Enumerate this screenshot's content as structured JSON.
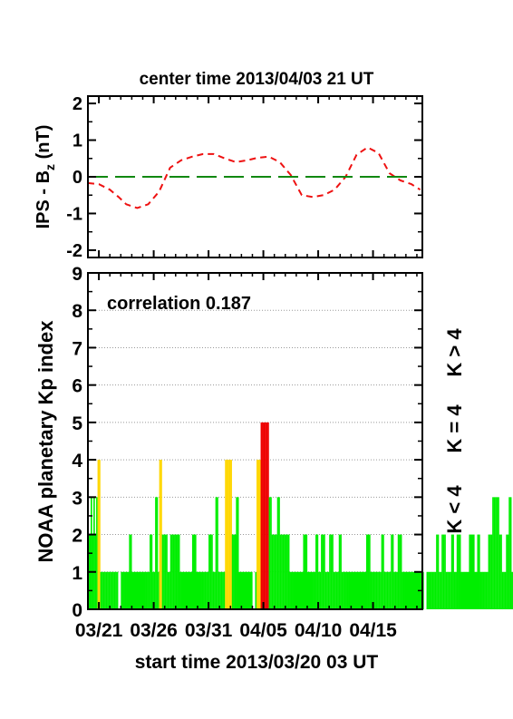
{
  "colors": {
    "bz_line": "#ee1111",
    "zero_line": "#118811",
    "kp_low": "#00ee00",
    "kp_mid": "#ffd700",
    "kp_high": "#ee0000",
    "grid": "#999999"
  },
  "x_ticks": [
    "03/21",
    "03/26",
    "03/31",
    "04/05",
    "04/10",
    "04/15"
  ],
  "chart_data": [
    {
      "type": "line",
      "title": "center time 2013/04/03 21 UT",
      "ylabel_main": "IPS - B",
      "ylabel_sub": "z",
      "ylabel_unit": " (nT)",
      "ylim": [
        -2.2,
        2.2
      ],
      "yticks": [
        "2",
        "1",
        "0",
        "-1",
        "-2"
      ],
      "xlim_days": [
        0,
        30.5
      ],
      "series": [
        {
          "style": "dashed-red",
          "x": [
            0,
            1,
            2,
            2.8,
            3.5,
            4.5,
            5.5,
            6.5,
            7.5,
            8.5,
            9.5,
            10.5,
            11.5,
            12.5,
            13.5,
            14.5,
            15.5,
            16.5,
            17.5,
            18.5,
            19.5,
            20.5,
            21.5,
            22.5,
            23.5,
            24.5,
            25.5,
            26.5,
            27.5,
            28.5,
            29.5,
            30.3
          ],
          "y": [
            -0.17,
            -0.2,
            -0.35,
            -0.55,
            -0.75,
            -0.85,
            -0.75,
            -0.4,
            0.25,
            0.45,
            0.55,
            0.62,
            0.62,
            0.5,
            0.4,
            0.45,
            0.52,
            0.55,
            0.4,
            0.05,
            -0.5,
            -0.55,
            -0.5,
            -0.35,
            0.0,
            0.6,
            0.8,
            0.65,
            0.1,
            -0.1,
            -0.2,
            -0.35
          ]
        },
        {
          "style": "long-dash-green",
          "x": [
            0,
            30.5
          ],
          "y": [
            0,
            0
          ]
        }
      ]
    },
    {
      "type": "bar",
      "annotation": "correlation 0.187",
      "ylabel": "NOAA planetary Kp index",
      "xlabel": "start time 2013/03/20 03 UT",
      "ylim": [
        0,
        9
      ],
      "yticks": [
        "9",
        "8",
        "7",
        "6",
        "5",
        "4",
        "3",
        "2",
        "1",
        "0"
      ],
      "grid": "dotted horizontal",
      "legend": [
        "K < 4",
        "K = 4",
        "K > 4"
      ],
      "xlim_days": [
        0,
        30.5
      ],
      "bin_days": 0.125,
      "values": [
        2,
        2,
        3,
        2,
        3,
        2,
        3,
        4,
        4,
        1,
        1,
        1,
        1,
        1,
        1,
        1,
        1,
        1,
        1,
        1,
        1,
        1,
        0,
        0,
        1,
        1,
        1,
        1,
        1,
        1,
        2,
        2,
        1,
        1,
        1,
        1,
        1,
        1,
        1,
        1,
        1,
        1,
        1,
        1,
        1,
        2,
        2,
        1,
        1,
        3,
        3,
        1,
        4,
        4,
        2,
        2,
        2,
        2,
        1,
        1,
        2,
        2,
        2,
        2,
        2,
        2,
        2,
        1,
        1,
        1,
        1,
        1,
        1,
        1,
        1,
        1,
        2,
        2,
        2,
        1,
        1,
        1,
        1,
        1,
        1,
        1,
        1,
        1,
        2,
        2,
        2,
        1,
        1,
        3,
        3,
        1,
        1,
        1,
        1,
        1,
        4,
        4,
        4,
        4,
        4,
        2,
        2,
        2,
        3,
        3,
        1,
        1,
        1,
        1,
        1,
        1,
        1,
        1,
        1,
        1,
        0,
        0,
        1,
        4,
        4,
        4,
        5,
        5,
        5,
        5,
        5,
        5,
        3,
        3,
        2,
        2,
        2,
        2,
        3,
        3,
        2,
        2,
        2,
        2,
        2,
        2,
        2,
        1,
        1,
        1,
        1,
        1,
        1,
        1,
        1,
        1,
        1,
        2,
        2,
        2,
        1,
        1,
        1,
        1,
        1,
        1,
        2,
        2,
        1,
        1,
        2,
        2,
        2,
        1,
        1,
        1,
        2,
        2,
        2,
        1,
        1,
        1,
        1,
        2,
        2,
        1,
        1,
        1,
        1,
        1,
        1,
        1,
        1,
        1,
        1,
        1,
        1,
        1,
        1,
        1,
        1,
        1,
        1,
        2,
        2,
        2,
        1,
        1,
        1,
        1,
        1,
        1,
        1,
        1,
        2,
        2,
        1,
        1,
        1,
        1,
        1,
        2,
        2,
        1,
        1,
        1,
        2,
        2,
        2,
        1,
        1,
        1,
        1,
        1,
        1,
        1,
        1,
        1,
        1,
        1,
        1,
        1,
        1,
        1,
        1,
        0,
        0,
        1,
        1,
        1,
        1,
        1,
        1,
        1,
        2,
        2,
        1,
        1,
        2,
        2,
        2,
        1,
        1,
        1,
        1,
        2,
        2,
        1,
        1,
        2,
        2,
        2,
        1,
        1,
        1,
        1,
        1,
        1,
        2,
        2,
        2,
        2,
        1,
        1,
        2,
        2,
        1,
        1,
        1,
        1,
        1,
        1,
        2,
        2,
        2,
        3,
        3,
        3,
        3,
        3,
        2,
        2,
        1,
        1,
        1,
        2,
        2,
        3,
        3,
        1,
        1,
        1,
        1,
        0,
        0,
        0,
        0,
        0,
        1,
        1,
        1,
        1,
        1,
        1,
        1,
        1,
        0,
        1,
        1,
        1,
        1,
        1,
        0,
        0,
        0
      ]
    }
  ]
}
